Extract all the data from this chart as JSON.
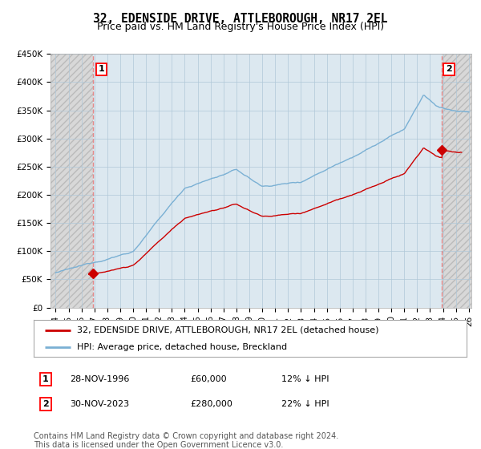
{
  "title": "32, EDENSIDE DRIVE, ATTLEBOROUGH, NR17 2EL",
  "subtitle": "Price paid vs. HM Land Registry's House Price Index (HPI)",
  "ylabel_ticks": [
    "£0",
    "£50K",
    "£100K",
    "£150K",
    "£200K",
    "£250K",
    "£300K",
    "£350K",
    "£400K",
    "£450K"
  ],
  "ylim": [
    0,
    450000
  ],
  "xlim_start": 1993.6,
  "xlim_end": 2026.2,
  "sale1_date": 1996.92,
  "sale1_price": 60000,
  "sale1_label": "1",
  "sale2_date": 2023.92,
  "sale2_price": 280000,
  "sale2_label": "2",
  "hpi_color": "#7ab0d4",
  "price_color": "#cc0000",
  "dashed_line_color": "#e87878",
  "hatch_bg_color": "#e8e8e8",
  "chart_bg_color": "#dce8f0",
  "legend_line1": "32, EDENSIDE DRIVE, ATTLEBOROUGH, NR17 2EL (detached house)",
  "legend_line2": "HPI: Average price, detached house, Breckland",
  "annotation1_date": "28-NOV-1996",
  "annotation1_price": "£60,000",
  "annotation1_hpi": "12% ↓ HPI",
  "annotation2_date": "30-NOV-2023",
  "annotation2_price": "£280,000",
  "annotation2_hpi": "22% ↓ HPI",
  "footer": "Contains HM Land Registry data © Crown copyright and database right 2024.\nThis data is licensed under the Open Government Licence v3.0.",
  "background_color": "#ffffff",
  "plot_bg_color": "#ffffff",
  "grid_color": "#b0c8d8",
  "title_fontsize": 10.5,
  "subtitle_fontsize": 9,
  "tick_fontsize": 7.5,
  "legend_fontsize": 8,
  "annotation_fontsize": 8,
  "footer_fontsize": 7
}
